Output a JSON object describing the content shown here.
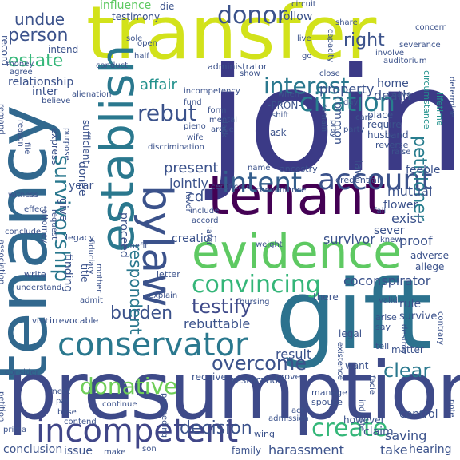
{
  "palette": {
    "dark_purple": "#440154",
    "indigo": "#3b528b",
    "blue": "#31688e",
    "teal": "#21918c",
    "green": "#35b779",
    "lime": "#6ece58",
    "yellow": "#cde11d"
  },
  "words": {
    "joint": "joint",
    "presumption": "presumption",
    "tenancy": "tenancy",
    "gift": "gift",
    "transfer": "transfer",
    "tenant": "tenant",
    "evidence": "evidence",
    "establish": "establish",
    "bylaw": "bylaw",
    "conservator": "conservator",
    "incompetent": "incompetent",
    "account": "account",
    "intent": "intent",
    "citation": "citation",
    "donor": "donor",
    "survivorship": "survivorship",
    "convincing": "convincing",
    "interest": "interest",
    "rebut": "rebut",
    "create": "create",
    "donative": "donative",
    "decision": "decision",
    "overcome": "overcome",
    "testify": "testify",
    "clear": "clear",
    "burden": "burden",
    "person": "person",
    "undue": "undue",
    "right": "right",
    "estate": "estate",
    "petitioner": "petitioner",
    "respondent": "respondent",
    "influence": "influence",
    "testimony": "testimony",
    "die": "die",
    "circuit": "circuit",
    "follow": "follow",
    "relationship": "relationship",
    "intend": "intend",
    "affair": "affair",
    "administrator": "administrator",
    "property": "property",
    "death": "death",
    "home": "home",
    "common": "common",
    "law": "law",
    "present": "present",
    "jointly": "jointly",
    "cd": "cd",
    "mutual": "mutual",
    "creation": "creation",
    "survivor": "survivor",
    "proof": "proof",
    "sever": "sever",
    "exist": "exist",
    "flower": "flower",
    "coconspirator": "coconspirator",
    "rebuttable": "rebuttable",
    "result": "result",
    "harassment": "harassment",
    "saving": "saving",
    "take": "take",
    "hearing": "hearing",
    "issue": "issue",
    "conclusion": "conclusion",
    "finding": "finding",
    "year": "year",
    "donee": "donee",
    "give": "give",
    "proceed": "proceed",
    "legacy": "legacy",
    "inter": "inter",
    "conduct": "conduct",
    "alienation": "alienation",
    "believe": "believe",
    "sole": "sole",
    "open": "open",
    "half": "half",
    "incompetency": "incompetency",
    "pron": "-PRON-",
    "when": "when",
    "shift": "shift",
    "fund": "fund",
    "pieno": "pieno",
    "wife": "wife",
    "form": "form",
    "mental": "mental",
    "argue": "argue",
    "ask": "ask",
    "lack": "lack",
    "sufficient": "sufficient",
    "express": "express",
    "purpose": "purpose",
    "discrimination": "discrimination",
    "name": "name",
    "ancestry": "ancestry",
    "credential": "credential",
    "feeble": "feeble",
    "certificate": "certificate",
    "convenience": "convenience",
    "include": "include",
    "accord": "accord",
    "adverse": "adverse",
    "allege": "allege",
    "knew": "knew",
    "weight": "weight",
    "letter": "letter",
    "explain": "explain",
    "nursing": "nursing",
    "there": "there",
    "valid": "valid",
    "rule": "rule",
    "survive": "survive",
    "arise": "arise",
    "say": "say",
    "destroy": "destroy",
    "tell": "tell",
    "matter": "matter",
    "want": "want",
    "legal": "legal",
    "receive": "receive",
    "restoration": "restoration",
    "prove": "prove",
    "manage": "manage",
    "spouse": "spouse",
    "indicate": "indicate",
    "admission": "admission",
    "however": "however",
    "control": "control",
    "claim": "claim",
    "wing": "wing",
    "act": "act",
    "family": "family",
    "son": "son",
    "make": "make",
    "continue": "continue",
    "meet": "meet",
    "par": "par",
    "base": "base",
    "contend": "contend",
    "prima": "prima",
    "consider": "consider",
    "visit": "visit",
    "irrevocable": "irrevocable",
    "admit": "admit",
    "mother": "mother",
    "title": "title",
    "fiduciary": "fiduciary",
    "attorney": "attorney",
    "request": "request",
    "benefit": "benefit",
    "write": "write",
    "understand": "understand",
    "conclude": "conclude",
    "witness": "witness",
    "effect": "effect",
    "file": "file",
    "reason": "reason",
    "record": "record",
    "money": "money",
    "agree": "agree",
    "remand": "remand",
    "association": "association",
    "petition": "petition",
    "concern": "concern",
    "severance": "severance",
    "share": "share",
    "live": "live",
    "capacity": "capacity",
    "auditorium": "auditorium",
    "involve": "involve",
    "close": "close",
    "go": "go",
    "show": "show",
    "remain": "remain",
    "leave": "leave",
    "day": "day",
    "place": "place",
    "require": "require",
    "husband": "husband",
    "party": "party",
    "care": "care",
    "reverse": "reverse",
    "raise": "raise",
    "lifetime": "lifetime",
    "circumstance": "circumstance",
    "determine": "determine",
    "pray": "pray",
    "contrary": "contrary",
    "existence": "existence",
    "facie": "facie",
    "favor": "favor",
    "later": "later",
    "proceeding": "proceeding",
    "note": "note",
    "fail": "fail"
  }
}
